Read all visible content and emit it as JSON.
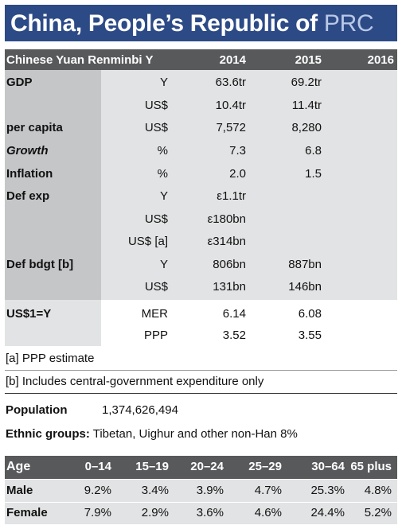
{
  "title": {
    "name": "China, People’s Republic of",
    "abbr": "PRC"
  },
  "economy": {
    "header": {
      "currency": "Chinese Yuan Renminbi Y",
      "years": [
        "2014",
        "2015",
        "2016"
      ]
    },
    "rows": [
      {
        "label": "GDP",
        "unit": "Y",
        "v2014": "63.6tr",
        "v2015": "69.2tr"
      },
      {
        "label": "",
        "unit": "US$",
        "v2014": "10.4tr",
        "v2015": "11.4tr"
      },
      {
        "label": "per capita",
        "unit": "US$",
        "v2014": "7,572",
        "v2015": "8,280"
      },
      {
        "label": "Growth",
        "unit": "%",
        "v2014": "7.3",
        "v2015": "6.8"
      },
      {
        "label": "Inflation",
        "unit": "%",
        "v2014": "2.0",
        "v2015": "1.5"
      },
      {
        "label": "Def exp",
        "unit": "Y",
        "v2014": "ε1.1tr",
        "v2015": ""
      },
      {
        "label": "",
        "unit": "US$",
        "v2014": "ε180bn",
        "v2015": ""
      },
      {
        "label": "",
        "unit": "US$ [a]",
        "v2014": "ε314bn",
        "v2015": ""
      },
      {
        "label": "Def bdgt [b]",
        "unit": "Y",
        "v2014": "806bn",
        "v2015": "887bn"
      },
      {
        "label": "",
        "unit": "US$",
        "v2014": "131bn",
        "v2015": "146bn"
      }
    ],
    "exchange": [
      {
        "label": "US$1=Y",
        "unit": "MER",
        "v2014": "6.14",
        "v2015": "6.08"
      },
      {
        "label": "",
        "unit": "PPP",
        "v2014": "3.52",
        "v2015": "3.55"
      }
    ]
  },
  "notes": [
    "[a] PPP estimate",
    "[b] Includes central-government expenditure only"
  ],
  "population": {
    "label": "Population",
    "value": "1,374,626,494"
  },
  "ethnic": {
    "label": "Ethnic groups:",
    "value": "Tibetan, Uighur and other non-Han 8%"
  },
  "age_table": {
    "headers": [
      "Age",
      "0–14",
      "15–19",
      "20–24",
      "25–29",
      "30–64",
      "65 plus"
    ],
    "rows": [
      {
        "label": "Male",
        "values": [
          "9.2%",
          "3.4%",
          "3.9%",
          "4.7%",
          "25.3%",
          "4.8%"
        ]
      },
      {
        "label": "Female",
        "values": [
          "7.9%",
          "2.9%",
          "3.6%",
          "4.6%",
          "24.4%",
          "5.2%"
        ]
      }
    ]
  },
  "colors": {
    "title_bg": "#2c4a86",
    "header_bg": "#58595b",
    "body_bg": "#e2e3e4",
    "label_col_bg": "#c4c6c8"
  }
}
